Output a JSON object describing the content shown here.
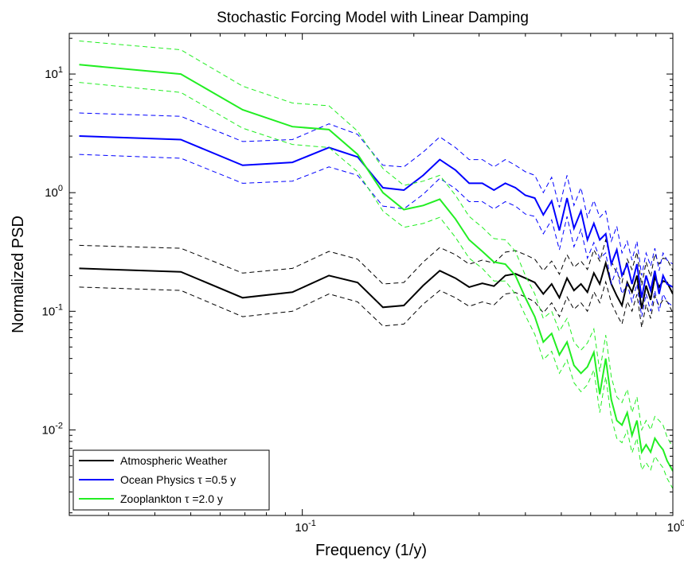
{
  "chart_data": {
    "type": "line",
    "title": "Stochastic Forcing Model with Linear Damping",
    "xlabel": "Frequency (1/y)",
    "ylabel": "Normalized PSD",
    "xscale": "log",
    "yscale": "log",
    "xlim": [
      0.0235,
      1.0
    ],
    "ylim": [
      0.0019,
      22
    ],
    "grid": false,
    "legend_position": "bottom-left",
    "x_ticks": [
      {
        "value": 0.1,
        "base": "10",
        "exp": "-1"
      },
      {
        "value": 1.0,
        "base": "10",
        "exp": "0"
      }
    ],
    "y_ticks": [
      {
        "value": 0.01,
        "base": "10",
        "exp": "-2"
      },
      {
        "value": 0.1,
        "base": "10",
        "exp": "-1"
      },
      {
        "value": 1.0,
        "base": "10",
        "exp": "0"
      },
      {
        "value": 10.0,
        "base": "10",
        "exp": "1"
      }
    ],
    "x": [
      0.025,
      0.047,
      0.069,
      0.094,
      0.118,
      0.141,
      0.165,
      0.188,
      0.212,
      0.235,
      0.259,
      0.282,
      0.306,
      0.329,
      0.353,
      0.376,
      0.4,
      0.424,
      0.447,
      0.471,
      0.494,
      0.518,
      0.541,
      0.565,
      0.588,
      0.612,
      0.635,
      0.659,
      0.682,
      0.706,
      0.729,
      0.753,
      0.776,
      0.8,
      0.824,
      0.847,
      0.871,
      0.894,
      0.918,
      0.941,
      0.965,
      1.0
    ],
    "series": [
      {
        "name": "Atmospheric Weather",
        "color": "#000000",
        "values": [
          0.23,
          0.215,
          0.13,
          0.145,
          0.2,
          0.175,
          0.108,
          0.112,
          0.165,
          0.22,
          0.19,
          0.16,
          0.172,
          0.163,
          0.2,
          0.207,
          0.19,
          0.175,
          0.14,
          0.17,
          0.13,
          0.19,
          0.15,
          0.17,
          0.145,
          0.21,
          0.17,
          0.255,
          0.17,
          0.135,
          0.112,
          0.175,
          0.145,
          0.2,
          0.105,
          0.165,
          0.125,
          0.195,
          0.16,
          0.18,
          0.175,
          0.14
        ],
        "upper": [
          0.36,
          0.34,
          0.21,
          0.23,
          0.32,
          0.275,
          0.17,
          0.175,
          0.26,
          0.345,
          0.3,
          0.25,
          0.27,
          0.255,
          0.315,
          0.325,
          0.3,
          0.275,
          0.22,
          0.265,
          0.205,
          0.3,
          0.235,
          0.265,
          0.225,
          0.33,
          0.265,
          0.4,
          0.265,
          0.21,
          0.175,
          0.275,
          0.225,
          0.315,
          0.165,
          0.26,
          0.195,
          0.305,
          0.25,
          0.28,
          0.275,
          0.22
        ],
        "lower": [
          0.16,
          0.15,
          0.09,
          0.1,
          0.14,
          0.12,
          0.075,
          0.078,
          0.115,
          0.15,
          0.13,
          0.11,
          0.12,
          0.113,
          0.14,
          0.144,
          0.132,
          0.12,
          0.097,
          0.118,
          0.09,
          0.132,
          0.104,
          0.118,
          0.1,
          0.146,
          0.118,
          0.177,
          0.118,
          0.094,
          0.078,
          0.121,
          0.1,
          0.139,
          0.073,
          0.114,
          0.087,
          0.135,
          0.111,
          0.125,
          0.121,
          0.097
        ]
      },
      {
        "name": "Ocean Physics τ =0.5 y",
        "color": "#0000ff",
        "values": [
          3.0,
          2.8,
          1.7,
          1.8,
          2.4,
          2.0,
          1.1,
          1.05,
          1.4,
          1.9,
          1.55,
          1.2,
          1.2,
          1.05,
          1.2,
          1.1,
          0.95,
          0.9,
          0.65,
          0.85,
          0.48,
          0.9,
          0.5,
          0.7,
          0.4,
          0.55,
          0.4,
          0.45,
          0.25,
          0.33,
          0.2,
          0.25,
          0.17,
          0.25,
          0.13,
          0.2,
          0.15,
          0.22,
          0.14,
          0.2,
          0.17,
          0.16
        ],
        "upper": [
          4.7,
          4.4,
          2.7,
          2.8,
          3.8,
          3.1,
          1.7,
          1.65,
          2.2,
          2.95,
          2.4,
          1.9,
          1.9,
          1.65,
          1.9,
          1.7,
          1.5,
          1.4,
          1.0,
          1.35,
          0.75,
          1.4,
          0.78,
          1.1,
          0.62,
          0.86,
          0.62,
          0.7,
          0.39,
          0.52,
          0.31,
          0.39,
          0.27,
          0.39,
          0.2,
          0.31,
          0.24,
          0.34,
          0.22,
          0.31,
          0.27,
          0.25
        ],
        "lower": [
          2.1,
          1.95,
          1.2,
          1.25,
          1.65,
          1.4,
          0.77,
          0.73,
          0.97,
          1.32,
          1.08,
          0.84,
          0.84,
          0.73,
          0.84,
          0.77,
          0.66,
          0.63,
          0.45,
          0.59,
          0.33,
          0.63,
          0.35,
          0.49,
          0.28,
          0.38,
          0.28,
          0.31,
          0.17,
          0.23,
          0.14,
          0.17,
          0.12,
          0.17,
          0.09,
          0.14,
          0.1,
          0.15,
          0.1,
          0.14,
          0.12,
          0.11
        ]
      },
      {
        "name": "Zooplankton τ =2.0 y",
        "color": "#22ee22",
        "values": [
          12.0,
          10.0,
          5.0,
          3.6,
          3.4,
          2.1,
          1.0,
          0.72,
          0.78,
          0.88,
          0.6,
          0.4,
          0.32,
          0.26,
          0.25,
          0.2,
          0.13,
          0.09,
          0.055,
          0.065,
          0.043,
          0.055,
          0.035,
          0.03,
          0.034,
          0.045,
          0.02,
          0.04,
          0.018,
          0.012,
          0.011,
          0.014,
          0.009,
          0.012,
          0.0065,
          0.0075,
          0.0065,
          0.0085,
          0.0075,
          0.0068,
          0.0055,
          0.0045
        ],
        "upper": [
          19.0,
          16.0,
          7.9,
          5.7,
          5.4,
          3.3,
          1.6,
          1.15,
          1.25,
          1.4,
          0.95,
          0.63,
          0.51,
          0.41,
          0.4,
          0.32,
          0.2,
          0.14,
          0.087,
          0.1,
          0.068,
          0.087,
          0.055,
          0.047,
          0.054,
          0.071,
          0.031,
          0.063,
          0.028,
          0.019,
          0.017,
          0.022,
          0.014,
          0.019,
          0.01,
          0.012,
          0.01,
          0.013,
          0.012,
          0.011,
          0.0087,
          0.0071
        ],
        "lower": [
          8.5,
          7.0,
          3.5,
          2.55,
          2.4,
          1.5,
          0.7,
          0.51,
          0.55,
          0.62,
          0.42,
          0.28,
          0.23,
          0.18,
          0.18,
          0.14,
          0.092,
          0.064,
          0.039,
          0.046,
          0.03,
          0.039,
          0.025,
          0.021,
          0.024,
          0.032,
          0.014,
          0.028,
          0.0127,
          0.0085,
          0.0078,
          0.0099,
          0.0064,
          0.0085,
          0.0046,
          0.0053,
          0.0046,
          0.006,
          0.0053,
          0.0048,
          0.0039,
          0.0032
        ]
      }
    ]
  }
}
